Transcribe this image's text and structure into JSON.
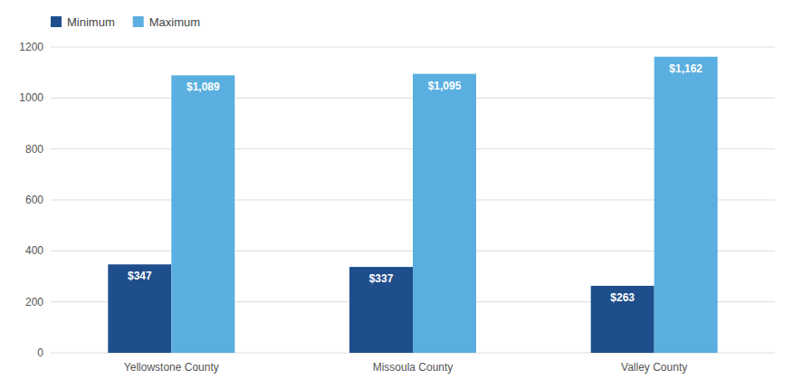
{
  "chart_data": {
    "type": "bar",
    "categories": [
      "Yellowstone County",
      "Missoula County",
      "Valley County"
    ],
    "series": [
      {
        "name": "Minimum",
        "color": "#1f4e8c",
        "values": [
          347,
          337,
          263
        ],
        "value_labels": [
          "$347",
          "$337",
          "$263"
        ]
      },
      {
        "name": "Maximum",
        "color": "#5aafe0",
        "values": [
          1089,
          1095,
          1162
        ],
        "value_labels": [
          "$1,089",
          "$1,095",
          "$1,162"
        ]
      }
    ],
    "ylim": [
      0,
      1200
    ],
    "yticks": [
      0,
      200,
      400,
      600,
      800,
      1000,
      1200
    ],
    "grid": true,
    "legend": "upper left",
    "data_labels": true
  }
}
